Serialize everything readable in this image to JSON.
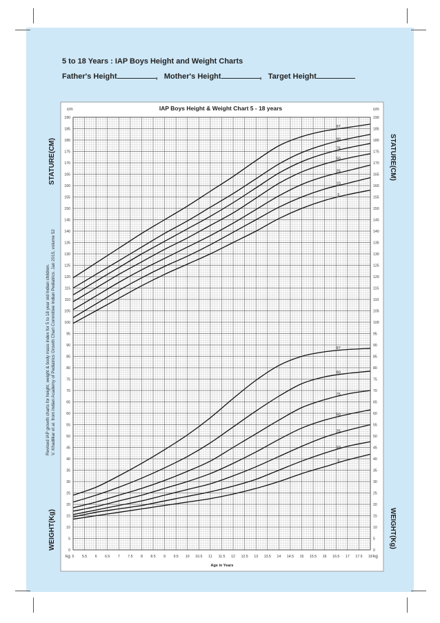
{
  "page": {
    "title": "5 to 18 Years : IAP Boys Height and Weight Charts",
    "fathers_height": "Father's Height",
    "mothers_height": "Mother's Height",
    "target_height": "Target Height",
    "side_label_stature": "STATURE(CM)",
    "side_label_weight": "WEIGHT(Kg)",
    "reference_line1": "Revised IAP growth charts for height, weight & body mass index for 5 to 18 year old Indian children.",
    "reference_line2": "V. Khadilkar et al. from Indian Academy of Pediatrics Growth Chart Committee Indian Pediatrics. Jan 2015, volume 52"
  },
  "colors": {
    "background": "#cfe8f7",
    "grid_minor": "#b9b9b9",
    "grid_major": "#6f6f6f",
    "curve": "#111111"
  },
  "chart_data": {
    "type": "line",
    "title": "IAP Boys Height & Weight Chart 5 - 18 years",
    "xlabel": "Age in Years",
    "ylabel_left": "cm",
    "ylabel_right": "cm",
    "ylabel_bottom_left": "kg",
    "ylabel_bottom_right": "kg",
    "xlim": [
      5,
      18
    ],
    "ylim": [
      0,
      190
    ],
    "x_ticks": [
      "5",
      "5.5",
      "6",
      "6.5",
      "7",
      "7.5",
      "8",
      "8.5",
      "9",
      "9.5",
      "10",
      "10.5",
      "11",
      "11.5",
      "12",
      "12.5",
      "13",
      "13.5",
      "14",
      "14.5",
      "15",
      "15.5",
      "16",
      "16.5",
      "17",
      "17.5",
      "18"
    ],
    "y_ticks": [
      "0",
      "5",
      "10",
      "15",
      "20",
      "25",
      "30",
      "35",
      "40",
      "45",
      "50",
      "55",
      "60",
      "65",
      "70",
      "75",
      "80",
      "85",
      "90",
      "95",
      "100",
      "105",
      "110",
      "115",
      "120",
      "125",
      "130",
      "135",
      "140",
      "145",
      "150",
      "155",
      "160",
      "165",
      "170",
      "175",
      "180",
      "185",
      "190"
    ],
    "grid": true,
    "x": [
      5,
      6,
      7,
      8,
      9,
      10,
      11,
      12,
      13,
      14,
      15,
      16,
      17,
      18
    ],
    "height_series": [
      {
        "name": "3",
        "values": [
          99.5,
          105,
          110.5,
          116,
          121,
          125.5,
          130,
          135,
          140,
          145.5,
          150,
          153.5,
          156,
          158
        ]
      },
      {
        "name": "10",
        "values": [
          102,
          108,
          114,
          119.5,
          124.5,
          129,
          134,
          139.5,
          145,
          150.5,
          155,
          158.5,
          161,
          163.5
        ]
      },
      {
        "name": "25",
        "values": [
          105.5,
          111.5,
          117.5,
          123,
          128,
          133,
          138,
          143.5,
          149.5,
          155.5,
          160.5,
          164,
          166.5,
          169
        ]
      },
      {
        "name": "50",
        "values": [
          109,
          115,
          121,
          126.5,
          132,
          137,
          142.5,
          148,
          154.5,
          161,
          166,
          169.5,
          172,
          174
        ]
      },
      {
        "name": "75",
        "values": [
          112,
          118,
          124,
          130,
          135.5,
          141,
          146.5,
          152.5,
          159,
          165.5,
          170.5,
          174,
          176.5,
          178.5
        ]
      },
      {
        "name": "90",
        "values": [
          115,
          121,
          127,
          133,
          139,
          144.5,
          150.5,
          156.5,
          163,
          169.5,
          174.5,
          178,
          180.5,
          182.5
        ]
      },
      {
        "name": "97",
        "values": [
          119.5,
          126,
          132.5,
          139,
          145,
          151,
          157.5,
          164,
          171,
          177.5,
          181.5,
          184,
          185.5,
          187
        ]
      }
    ],
    "weight_series": [
      {
        "name": "3",
        "values": [
          13.5,
          15,
          16.5,
          18,
          19.5,
          21,
          22.5,
          24.5,
          27,
          30,
          33.5,
          36.5,
          39.5,
          42
        ]
      },
      {
        "name": "10",
        "values": [
          14.5,
          16.5,
          18,
          19.5,
          21.5,
          23.5,
          25.5,
          28,
          31,
          35,
          39,
          42.5,
          45.5,
          47.5
        ]
      },
      {
        "name": "25",
        "values": [
          15.5,
          17.5,
          19.5,
          21.5,
          24,
          26.5,
          29,
          32.5,
          36.5,
          41,
          45.5,
          49.5,
          52.5,
          55
        ]
      },
      {
        "name": "50",
        "values": [
          17,
          19,
          21.5,
          24,
          27,
          30,
          33.5,
          38,
          43,
          48.5,
          53.5,
          57,
          59.5,
          61.5
        ]
      },
      {
        "name": "75",
        "values": [
          18.5,
          21,
          24,
          27,
          30.5,
          34.5,
          39,
          45,
          51,
          57,
          62.5,
          66,
          68.5,
          70
        ]
      },
      {
        "name": "90",
        "values": [
          21,
          24,
          27.5,
          31.5,
          36,
          41,
          47,
          54,
          61,
          67.5,
          73,
          76,
          77.5,
          78.5
        ]
      },
      {
        "name": "97",
        "values": [
          24,
          27.5,
          32.5,
          38,
          44,
          50.5,
          58,
          66.5,
          74.5,
          81,
          85,
          87,
          88,
          88.5
        ]
      }
    ]
  }
}
